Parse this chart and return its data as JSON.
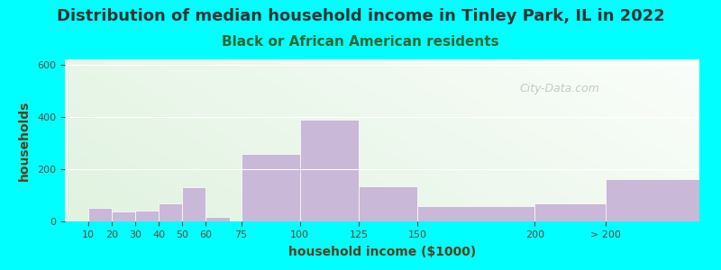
{
  "title": "Distribution of median household income in Tinley Park, IL in 2022",
  "subtitle": "Black or African American residents",
  "xlabel": "household income ($1000)",
  "ylabel": "households",
  "background_outer": "#00FFFF",
  "bar_color": "#C9B8D8",
  "bar_edge_color": "#C9B8D8",
  "ylim": [
    0,
    620
  ],
  "yticks": [
    0,
    200,
    400,
    600
  ],
  "categories": [
    "10",
    "20",
    "30",
    "40",
    "50",
    "60",
    "75",
    "100",
    "125",
    "150",
    "200",
    "> 200"
  ],
  "values": [
    52,
    37,
    40,
    68,
    130,
    18,
    260,
    390,
    135,
    60,
    68,
    163
  ],
  "bar_widths": [
    1,
    1,
    1,
    1,
    1,
    1,
    1,
    1,
    1,
    1,
    1,
    1
  ],
  "title_fontsize": 13,
  "subtitle_fontsize": 11,
  "axis_label_fontsize": 10,
  "title_color": "#333333",
  "subtitle_color": "#336633",
  "watermark": "City-Data.com"
}
